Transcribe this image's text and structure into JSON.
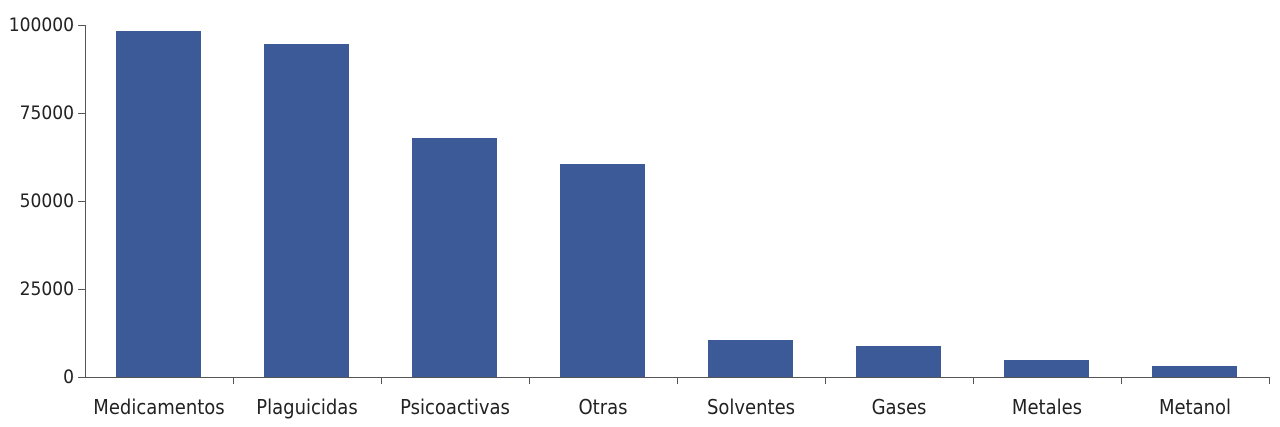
{
  "chart_data": {
    "type": "bar",
    "title": "",
    "xlabel": "",
    "ylabel": "",
    "categories": [
      "Medicamentos",
      "Plaguicidas",
      "Psicoactivas",
      "Otras",
      "Solventes",
      "Gases",
      "Metales",
      "Metanol"
    ],
    "values": [
      98300,
      94600,
      67900,
      60500,
      10500,
      8800,
      4800,
      3100
    ],
    "ylim": [
      0,
      100000
    ],
    "yticks": [
      "0",
      "25000",
      "50000",
      "75000",
      "100000"
    ],
    "grid": false,
    "bar_color": "#3d5a98"
  }
}
